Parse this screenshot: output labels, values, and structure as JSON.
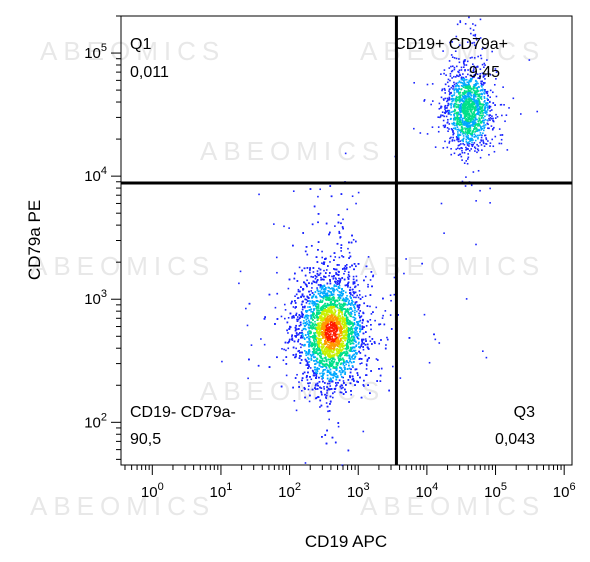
{
  "chart_data": {
    "type": "scatter",
    "subtype": "flow-cytometry-density-dot-plot",
    "xlabel": "CD19 APC",
    "ylabel": "CD79a PE",
    "x_scale": "log",
    "y_scale": "log",
    "xlim": [
      0.35,
      1300000
    ],
    "ylim": [
      45,
      200000
    ],
    "x_ticks": [
      {
        "base": "10",
        "exp": "0",
        "value": 1
      },
      {
        "base": "10",
        "exp": "1",
        "value": 10
      },
      {
        "base": "10",
        "exp": "2",
        "value": 100
      },
      {
        "base": "10",
        "exp": "3",
        "value": 1000
      },
      {
        "base": "10",
        "exp": "4",
        "value": 10000
      },
      {
        "base": "10",
        "exp": "5",
        "value": 100000
      },
      {
        "base": "10",
        "exp": "6",
        "value": 1000000
      }
    ],
    "y_ticks": [
      {
        "base": "10",
        "exp": "2",
        "value": 100
      },
      {
        "base": "10",
        "exp": "3",
        "value": 1000
      },
      {
        "base": "10",
        "exp": "4",
        "value": 10000
      },
      {
        "base": "10",
        "exp": "5",
        "value": 100000
      }
    ],
    "gate_x": 3600,
    "gate_y": 8800,
    "quadrants": [
      {
        "name": "Q1",
        "value": "0,011",
        "position": "top-left"
      },
      {
        "name": "CD19+ CD79a+",
        "value": "9,45",
        "position": "top-right"
      },
      {
        "name": "CD19- CD79a-",
        "value": "90,5",
        "position": "bottom-left"
      },
      {
        "name": "Q3",
        "value": "0,043",
        "position": "bottom-right"
      }
    ],
    "populations": [
      {
        "label": "CD19- CD79a-",
        "center_x": 400,
        "center_y": 550,
        "spread_x_log": 0.24,
        "spread_y_log": 0.22,
        "density": "high"
      },
      {
        "label": "CD19+ CD79a+",
        "center_x": 40000,
        "center_y": 35000,
        "spread_x_log": 0.16,
        "spread_y_log": 0.15,
        "density": "medium"
      }
    ],
    "color_scale": [
      "#1a24ff",
      "#00a8ff",
      "#00e08a",
      "#c8f000",
      "#ff9a00",
      "#ff1a00"
    ],
    "grid": false,
    "legend": "none"
  },
  "watermark": "ABEOMICS"
}
